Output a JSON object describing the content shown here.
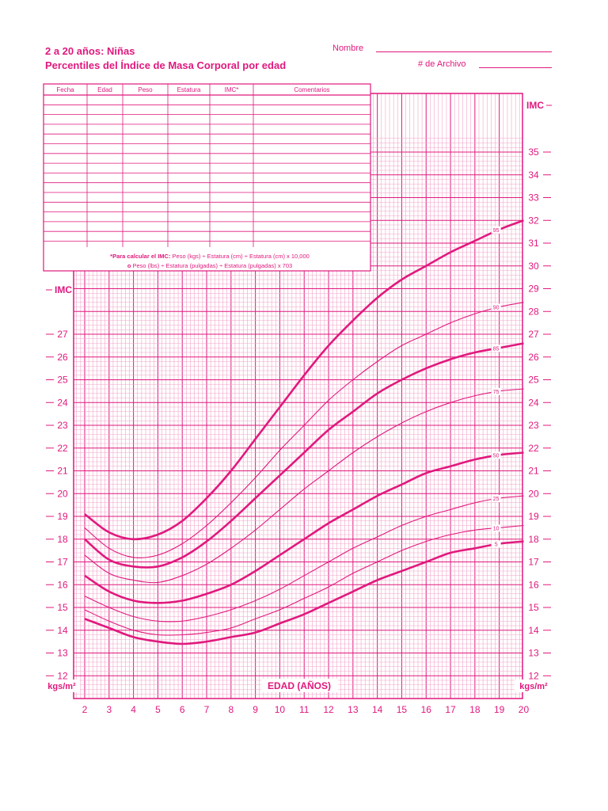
{
  "header": {
    "title_line1": "2 a 20 años: Niñas",
    "title_line2": "Percentiles del Índice de Masa Corporal por edad",
    "name_label": "Nombre",
    "record_label": "# de Archivo"
  },
  "table": {
    "columns": [
      "Fecha",
      "Edad",
      "Peso",
      "Estatura",
      "IMC*",
      "Comentarios"
    ]
  },
  "formula": {
    "line1_bold": "*Para calcular el IMC:",
    "line1_rest": " Peso (kgs) ÷ Estatura (cm) ÷ Estatura (cm) x 10,000",
    "line2_bold": "o",
    "line2_rest": " Peso (lbs) ÷ Estatura (pulgadas) ÷ Estatura (pulgadas) x 703"
  },
  "axis": {
    "imc_label": "IMC",
    "unit_label": "kgs/m²",
    "x_title": "EDAD (AÑOS)"
  },
  "colors": {
    "ink": "#e0197d",
    "grid": "#f2a3c9"
  },
  "chart_data": {
    "type": "line",
    "title": "Percentiles del Índice de Masa Corporal por edad",
    "xlabel": "EDAD (AÑOS)",
    "ylabel": "IMC",
    "xlim": [
      2,
      20
    ],
    "ylim": [
      12,
      35
    ],
    "x_ticks": [
      2,
      3,
      4,
      5,
      6,
      7,
      8,
      9,
      10,
      11,
      12,
      13,
      14,
      15,
      16,
      17,
      18,
      19,
      20
    ],
    "y_ticks_left": [
      12,
      13,
      14,
      15,
      16,
      17,
      18,
      19,
      20,
      21,
      22,
      23,
      24,
      25,
      26,
      27
    ],
    "y_ticks_right": [
      12,
      13,
      14,
      15,
      16,
      17,
      18,
      19,
      20,
      21,
      22,
      23,
      24,
      25,
      26,
      27,
      28,
      29,
      30,
      31,
      32,
      33,
      34,
      35
    ],
    "grid": true,
    "series": [
      {
        "name": "95",
        "bold": true,
        "x": [
          2,
          3,
          4,
          5,
          6,
          7,
          8,
          9,
          10,
          11,
          12,
          13,
          14,
          15,
          16,
          17,
          18,
          19,
          20
        ],
        "values": [
          19.1,
          18.3,
          18.0,
          18.2,
          18.8,
          19.8,
          21.0,
          22.4,
          23.8,
          25.2,
          26.5,
          27.6,
          28.6,
          29.4,
          30.0,
          30.6,
          31.1,
          31.6,
          32.0
        ]
      },
      {
        "name": "90",
        "bold": false,
        "x": [
          2,
          3,
          4,
          5,
          6,
          7,
          8,
          9,
          10,
          11,
          12,
          13,
          14,
          15,
          16,
          17,
          18,
          19,
          20
        ],
        "values": [
          18.5,
          17.6,
          17.2,
          17.3,
          17.8,
          18.6,
          19.6,
          20.7,
          21.9,
          23.0,
          24.1,
          25.0,
          25.8,
          26.5,
          27.0,
          27.5,
          27.9,
          28.2,
          28.4
        ]
      },
      {
        "name": "85",
        "bold": true,
        "x": [
          2,
          3,
          4,
          5,
          6,
          7,
          8,
          9,
          10,
          11,
          12,
          13,
          14,
          15,
          16,
          17,
          18,
          19,
          20
        ],
        "values": [
          18.0,
          17.1,
          16.8,
          16.8,
          17.2,
          17.9,
          18.8,
          19.8,
          20.8,
          21.8,
          22.8,
          23.6,
          24.4,
          25.0,
          25.5,
          25.9,
          26.2,
          26.4,
          26.6
        ]
      },
      {
        "name": "75",
        "bold": false,
        "x": [
          2,
          3,
          4,
          5,
          6,
          7,
          8,
          9,
          10,
          11,
          12,
          13,
          14,
          15,
          16,
          17,
          18,
          19,
          20
        ],
        "values": [
          17.3,
          16.5,
          16.2,
          16.1,
          16.4,
          16.9,
          17.6,
          18.4,
          19.3,
          20.2,
          21.0,
          21.8,
          22.5,
          23.1,
          23.6,
          24.0,
          24.3,
          24.5,
          24.6
        ]
      },
      {
        "name": "50",
        "bold": true,
        "x": [
          2,
          3,
          4,
          5,
          6,
          7,
          8,
          9,
          10,
          11,
          12,
          13,
          14,
          15,
          16,
          17,
          18,
          19,
          20
        ],
        "values": [
          16.4,
          15.7,
          15.3,
          15.2,
          15.3,
          15.6,
          16.0,
          16.6,
          17.3,
          18.0,
          18.7,
          19.3,
          19.9,
          20.4,
          20.9,
          21.2,
          21.5,
          21.7,
          21.8
        ]
      },
      {
        "name": "25",
        "bold": false,
        "x": [
          2,
          3,
          4,
          5,
          6,
          7,
          8,
          9,
          10,
          11,
          12,
          13,
          14,
          15,
          16,
          17,
          18,
          19,
          20
        ],
        "values": [
          15.5,
          15.0,
          14.6,
          14.4,
          14.4,
          14.6,
          14.9,
          15.3,
          15.8,
          16.4,
          17.0,
          17.6,
          18.1,
          18.6,
          19.0,
          19.3,
          19.6,
          19.8,
          19.9
        ]
      },
      {
        "name": "10",
        "bold": false,
        "x": [
          2,
          3,
          4,
          5,
          6,
          7,
          8,
          9,
          10,
          11,
          12,
          13,
          14,
          15,
          16,
          17,
          18,
          19,
          20
        ],
        "values": [
          14.9,
          14.4,
          14.0,
          13.8,
          13.8,
          13.9,
          14.1,
          14.5,
          14.9,
          15.4,
          15.9,
          16.5,
          17.0,
          17.5,
          17.9,
          18.2,
          18.4,
          18.5,
          18.6
        ]
      },
      {
        "name": "5",
        "bold": true,
        "x": [
          2,
          3,
          4,
          5,
          6,
          7,
          8,
          9,
          10,
          11,
          12,
          13,
          14,
          15,
          16,
          17,
          18,
          19,
          20
        ],
        "values": [
          14.5,
          14.1,
          13.7,
          13.5,
          13.4,
          13.5,
          13.7,
          13.9,
          14.3,
          14.7,
          15.2,
          15.7,
          16.2,
          16.6,
          17.0,
          17.4,
          17.6,
          17.8,
          17.9
        ]
      }
    ]
  }
}
